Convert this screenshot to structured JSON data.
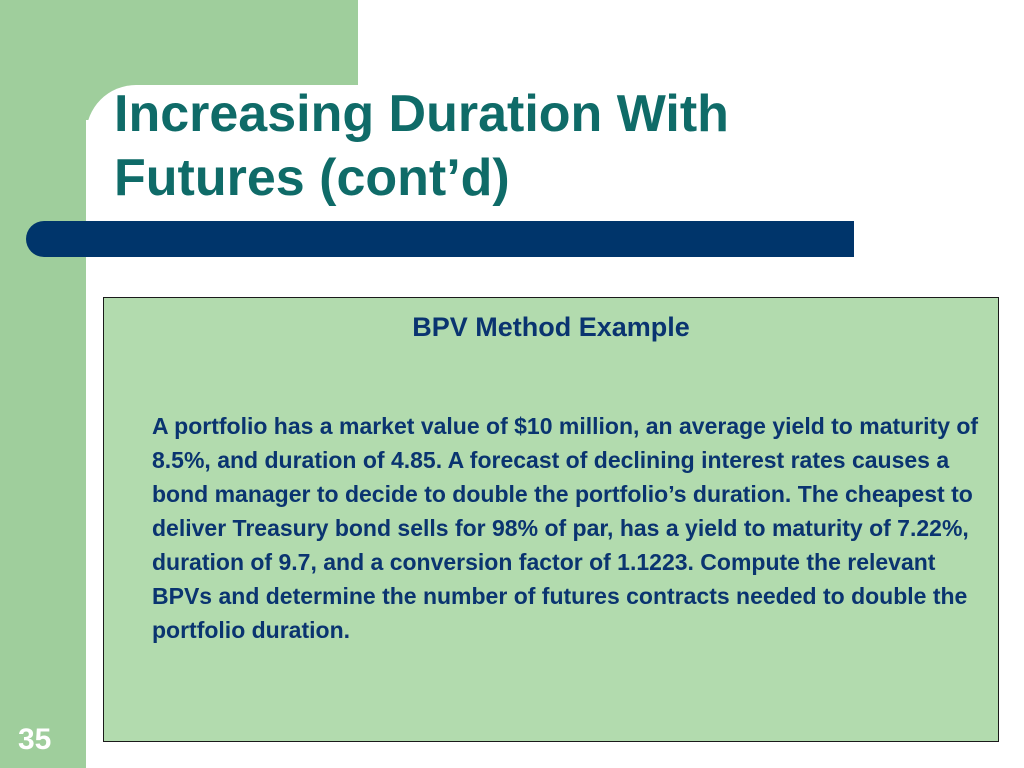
{
  "slide": {
    "title_line1": "Increasing Duration With",
    "title_line2": "Futures (cont’d)",
    "number": "35"
  },
  "content": {
    "heading": "BPV Method Example",
    "body": "A portfolio has a market value of $10 million, an average yield to maturity of 8.5%, and duration of 4.85. A forecast of declining interest rates causes a bond manager to decide to double the portfolio’s duration. The cheapest to deliver Treasury bond sells for 98% of par, has a yield to maturity of 7.22%, duration of 9.7, and a conversion factor of 1.1223. Compute the relevant BPVs and determine the number of futures contracts needed to double the portfolio duration."
  },
  "colors": {
    "accent_green": "#9fce9c",
    "title_teal": "#0f6b68",
    "bar_navy": "#00356b",
    "box_green": "#b2dbae",
    "text_navy": "#0a3470"
  }
}
